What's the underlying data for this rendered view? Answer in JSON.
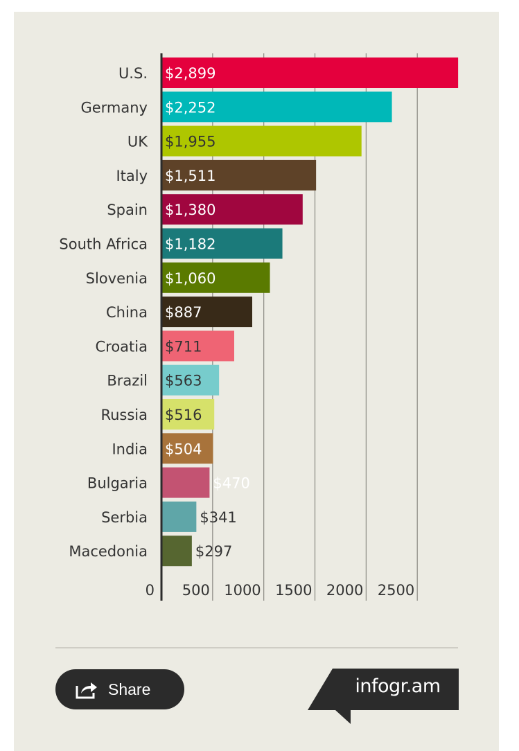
{
  "chart_data": {
    "type": "bar",
    "orientation": "horizontal",
    "categories": [
      "U.S.",
      "Germany",
      "UK",
      "Italy",
      "Spain",
      "South Africa",
      "Slovenia",
      "China",
      "Croatia",
      "Brazil",
      "Russia",
      "India",
      "Bulgaria",
      "Serbia",
      "Macedonia"
    ],
    "values": [
      2899,
      2252,
      1955,
      1511,
      1380,
      1182,
      1060,
      887,
      711,
      563,
      516,
      504,
      470,
      341,
      297
    ],
    "value_labels": [
      "$2,899",
      "$2,252",
      "$1,955",
      "$1,511",
      "$1,380",
      "$1,182",
      "$1,060",
      "$887",
      "$711",
      "$563",
      "$516",
      "$504",
      "$470",
      "$341",
      "$297"
    ],
    "colors": [
      "#e4003d",
      "#00b8b8",
      "#aec600",
      "#5e4228",
      "#a0063f",
      "#1b7a7a",
      "#5a7a00",
      "#382a18",
      "#ef6474",
      "#77cccc",
      "#d6e16a",
      "#a8733b",
      "#c35372",
      "#5fa6a8",
      "#566630"
    ],
    "label_colors": [
      "#ffffff",
      "#ffffff",
      "#333333",
      "#ffffff",
      "#ffffff",
      "#ffffff",
      "#ffffff",
      "#ffffff",
      "#333333",
      "#333333",
      "#333333",
      "#ffffff",
      "#ffffff",
      "#333333",
      "#333333"
    ],
    "xticks": [
      0,
      500,
      1000,
      1500,
      2000,
      2500
    ],
    "xtick_labels": [
      "0",
      "500",
      "1000",
      "1500",
      "2000",
      "2500"
    ],
    "xlim": [
      0,
      2899
    ],
    "grid": true,
    "title": "",
    "xlabel": "",
    "ylabel": ""
  },
  "footer": {
    "share_label": "Share",
    "brand": "infogr.am"
  },
  "theme": {
    "background": "#ecebe3",
    "text": "#333333",
    "dark": "#2b2b2b"
  }
}
